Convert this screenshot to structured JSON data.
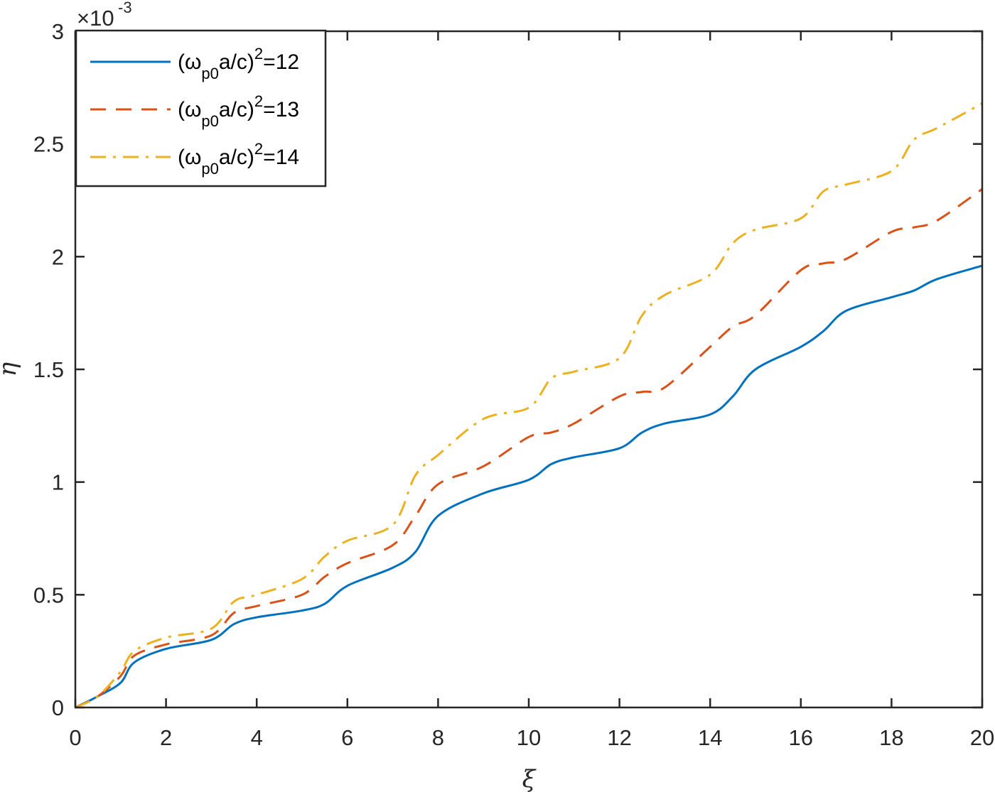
{
  "chart_data": {
    "type": "line",
    "title": "",
    "xlabel": "ξ",
    "ylabel": "η",
    "y_exponent_label": "×10",
    "y_exponent_power": "-3",
    "xlim": [
      0,
      20
    ],
    "ylim": [
      0,
      0.003
    ],
    "xticks": [
      "0",
      "2",
      "4",
      "6",
      "8",
      "10",
      "12",
      "14",
      "16",
      "18",
      "20"
    ],
    "yticks": [
      "0",
      "0.5",
      "1",
      "1.5",
      "2",
      "2.5",
      "3"
    ],
    "grid": false,
    "legend_position": "upper left",
    "x": [
      0,
      0.5,
      1.0,
      1.3,
      2,
      3,
      3.5,
      4,
      5,
      5.5,
      6,
      7,
      7.5,
      8,
      9,
      10,
      10.5,
      11,
      12,
      12.5,
      13,
      14,
      14.5,
      15,
      16,
      16.5,
      17,
      18,
      18.5,
      19,
      20
    ],
    "series": [
      {
        "name": "(ω_p0 a/c)^2=12",
        "label_main": "(ω",
        "label_sub": "p0",
        "label_mid": "a/c)",
        "label_sup": "2",
        "label_end": "=12",
        "color": "#0072BD",
        "dash": "solid",
        "values": [
          0,
          5e-05,
          0.00011,
          0.0002,
          0.00026,
          0.0003,
          0.00037,
          0.0004,
          0.00043,
          0.00046,
          0.00054,
          0.00062,
          0.00069,
          0.00085,
          0.00095,
          0.00101,
          0.00108,
          0.00111,
          0.00115,
          0.00122,
          0.00126,
          0.0013,
          0.00138,
          0.0015,
          0.0016,
          0.00167,
          0.00176,
          0.00182,
          0.00185,
          0.0019,
          0.00196
        ]
      },
      {
        "name": "(ω_p0 a/c)^2=13",
        "label_main": "(ω",
        "label_sub": "p0",
        "label_mid": "a/c)",
        "label_sup": "2",
        "label_end": "=13",
        "color": "#D95319",
        "dash": "dashed",
        "values": [
          0,
          5e-05,
          0.00014,
          0.00023,
          0.00028,
          0.00032,
          0.00042,
          0.00045,
          0.0005,
          0.00058,
          0.00064,
          0.00072,
          0.00085,
          0.00099,
          0.00107,
          0.0012,
          0.00122,
          0.00126,
          0.00138,
          0.0014,
          0.00142,
          0.0016,
          0.00169,
          0.00174,
          0.00194,
          0.00197,
          0.00199,
          0.00211,
          0.00213,
          0.00216,
          0.0023
        ]
      },
      {
        "name": "(ω_p0 a/c)^2=14",
        "label_main": "(ω",
        "label_sub": "p0",
        "label_mid": "a/c)",
        "label_sup": "2",
        "label_end": "=14",
        "color": "#EDB120",
        "dash": "dashdot",
        "values": [
          0,
          5e-05,
          0.00016,
          0.00025,
          0.00031,
          0.00035,
          0.00047,
          0.0005,
          0.00057,
          0.00067,
          0.00074,
          0.00081,
          0.00103,
          0.00112,
          0.00128,
          0.00133,
          0.00146,
          0.00149,
          0.00155,
          0.00174,
          0.00183,
          0.00192,
          0.00206,
          0.00212,
          0.00217,
          0.00229,
          0.00232,
          0.00238,
          0.00252,
          0.00257,
          0.00268
        ]
      }
    ]
  }
}
